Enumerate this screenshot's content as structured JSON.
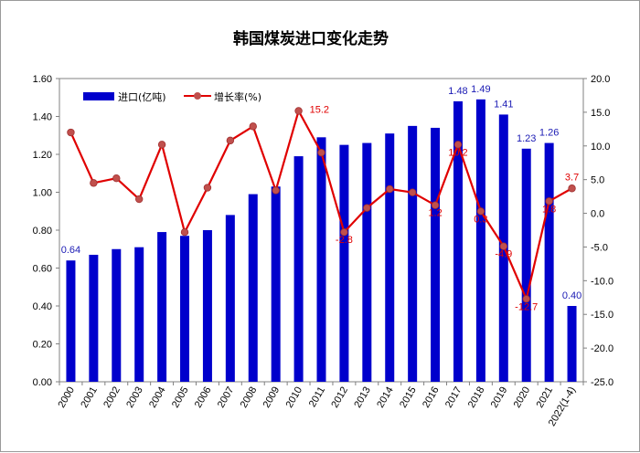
{
  "chart_data": {
    "type": "bar+line",
    "title": "韩国煤炭进口变化走势",
    "categories": [
      "2000",
      "2001",
      "2002",
      "2003",
      "2004",
      "2005",
      "2006",
      "2007",
      "2008",
      "2009",
      "2010",
      "2011",
      "2012",
      "2013",
      "2014",
      "2015",
      "2016",
      "2017",
      "2018",
      "2019",
      "2020",
      "2021",
      "2022(1-4)"
    ],
    "series": [
      {
        "name": "进口(亿吨)",
        "type": "bar",
        "axis": "left",
        "color": "#0000cc",
        "values": [
          0.64,
          0.67,
          0.7,
          0.71,
          0.79,
          0.77,
          0.8,
          0.88,
          0.99,
          1.03,
          1.19,
          1.29,
          1.25,
          1.26,
          1.31,
          1.35,
          1.34,
          1.48,
          1.49,
          1.41,
          1.23,
          1.26,
          0.4
        ],
        "labels": [
          "0.64",
          "",
          "",
          "",
          "",
          "",
          "",
          "",
          "",
          "",
          "",
          "",
          "",
          "",
          "",
          "",
          "",
          "1.48",
          "1.49",
          "1.41",
          "1.23",
          "1.26",
          "0.40"
        ]
      },
      {
        "name": "增长率(%)",
        "type": "line",
        "axis": "right",
        "color": "#e00000",
        "marker_color": "#c0504d",
        "values": [
          12.0,
          4.5,
          5.2,
          2.1,
          10.2,
          -2.8,
          3.8,
          10.8,
          12.9,
          3.4,
          15.2,
          9.0,
          -2.8,
          0.8,
          3.6,
          3.1,
          1.2,
          10.2,
          0.3,
          -4.9,
          -12.7,
          1.8,
          3.7
        ],
        "labels": [
          "",
          "",
          "",
          "",
          "",
          "",
          "",
          "",
          "",
          "",
          "15.2",
          "",
          "-2.8",
          "",
          "",
          "",
          "1.2",
          "10.2",
          "0.3",
          "-4.9",
          "-12.7",
          "1.8",
          "3.7"
        ]
      }
    ],
    "y_left": {
      "min": 0.0,
      "max": 1.6,
      "ticks": [
        "0.00",
        "0.20",
        "0.40",
        "0.60",
        "0.80",
        "1.00",
        "1.20",
        "1.40",
        "1.60"
      ]
    },
    "y_right": {
      "min": -25.0,
      "max": 20.0,
      "ticks": [
        "-25.0",
        "-20.0",
        "-15.0",
        "-10.0",
        "-5.0",
        "0.0",
        "5.0",
        "10.0",
        "15.0",
        "20.0"
      ]
    },
    "legend_position": "top-left",
    "grid": false
  }
}
